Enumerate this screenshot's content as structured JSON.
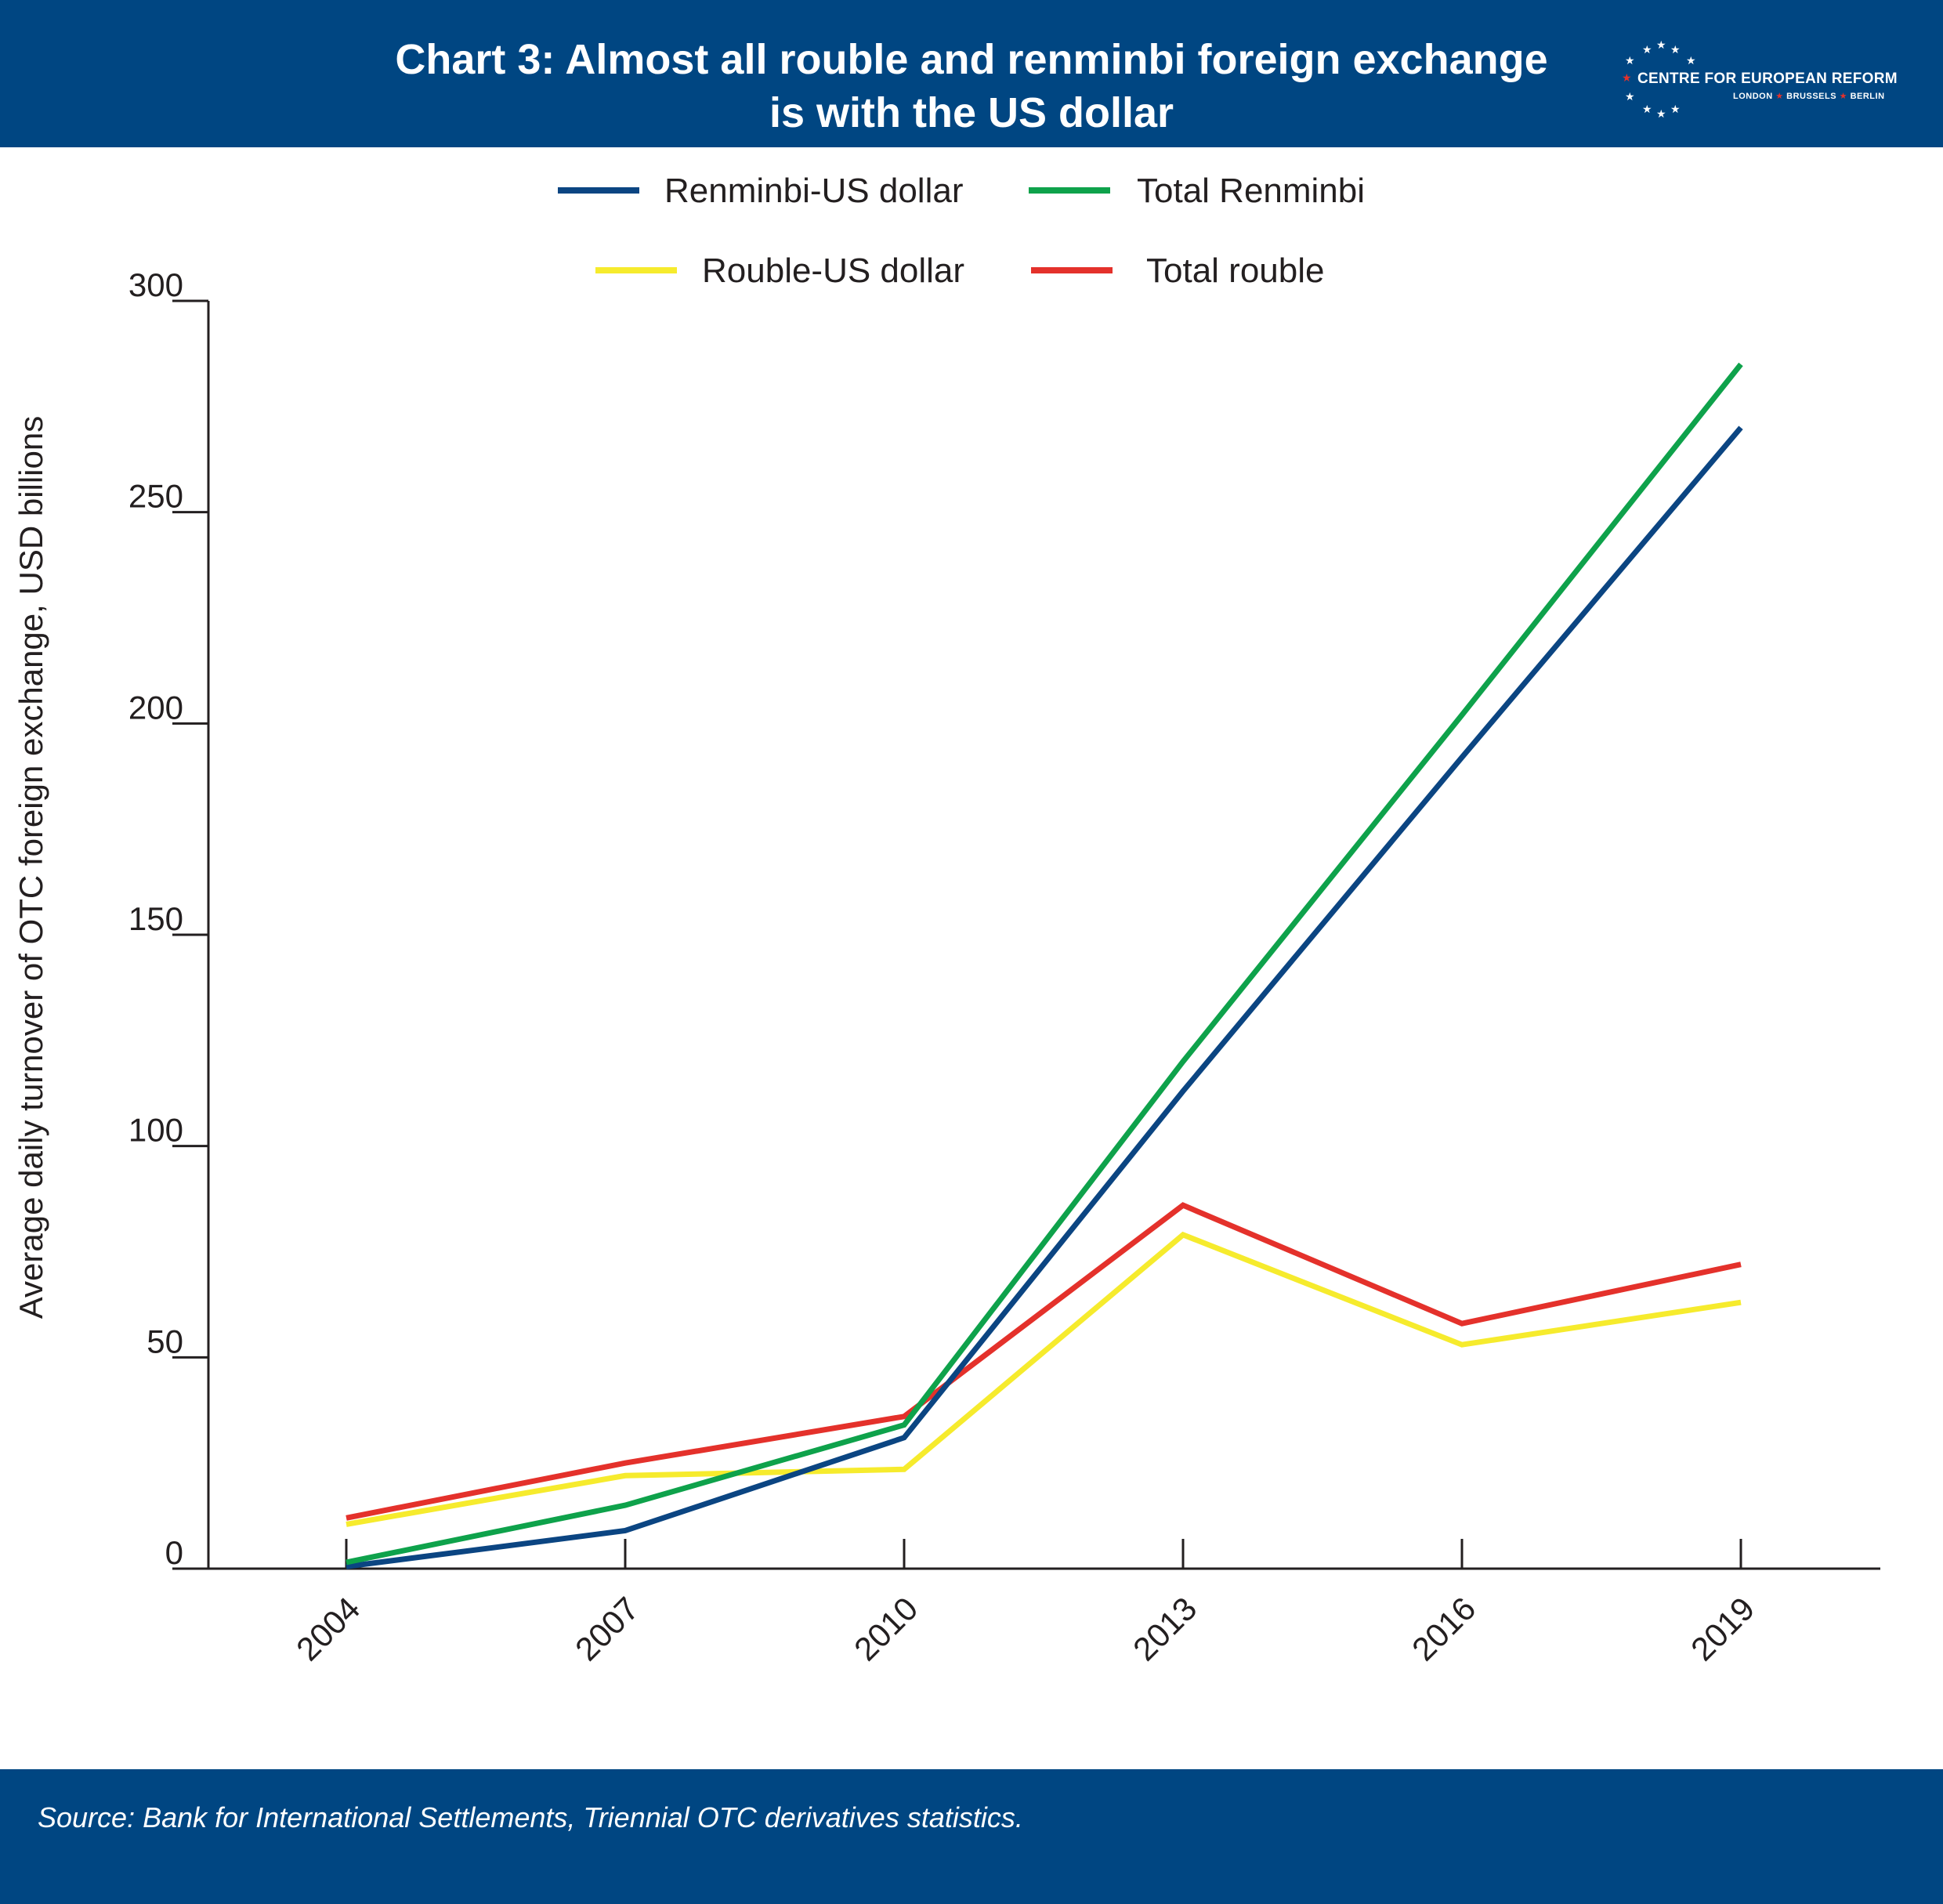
{
  "header": {
    "title_line1": "Chart 3: Almost all rouble and renminbi foreign exchange",
    "title_line2": "is with the US dollar"
  },
  "logo": {
    "name": "CENTRE FOR EUROPEAN REFORM",
    "city1": "LONDON",
    "city2": "BRUSSELS",
    "city3": "BERLIN",
    "star_color": "#ffffff",
    "accent_color": "#e4312b"
  },
  "footer": {
    "source": "Source: Bank for International Settlements, Triennial OTC derivatives statistics."
  },
  "colors": {
    "header_bg": "#004682",
    "axis": "#231f20"
  },
  "chart_data": {
    "type": "line",
    "title": "Chart 3: Almost all rouble and renminbi foreign exchange is with the US dollar",
    "xlabel": "",
    "ylabel": "Average daily turnover of OTC foreign exchange, USD billions",
    "ylim": [
      0,
      300
    ],
    "yticks": [
      0,
      50,
      100,
      150,
      200,
      250,
      300
    ],
    "categories": [
      "2004",
      "2007",
      "2010",
      "2013",
      "2016",
      "2019"
    ],
    "grid": false,
    "legend_position": "top",
    "series": [
      {
        "name": "Renminbi-US dollar",
        "color": "#0b4582",
        "values": [
          0.5,
          9,
          31,
          113,
          192,
          270
        ]
      },
      {
        "name": "Total Renminbi",
        "color": "#0ea24b",
        "values": [
          1.5,
          15,
          34,
          120,
          202,
          285
        ]
      },
      {
        "name": "Rouble-US dollar",
        "color": "#f6eb2d",
        "values": [
          10.5,
          22,
          23.5,
          79,
          53,
          63
        ]
      },
      {
        "name": "Total rouble",
        "color": "#e4312b",
        "values": [
          12,
          25,
          36,
          86,
          58,
          72
        ]
      }
    ]
  }
}
